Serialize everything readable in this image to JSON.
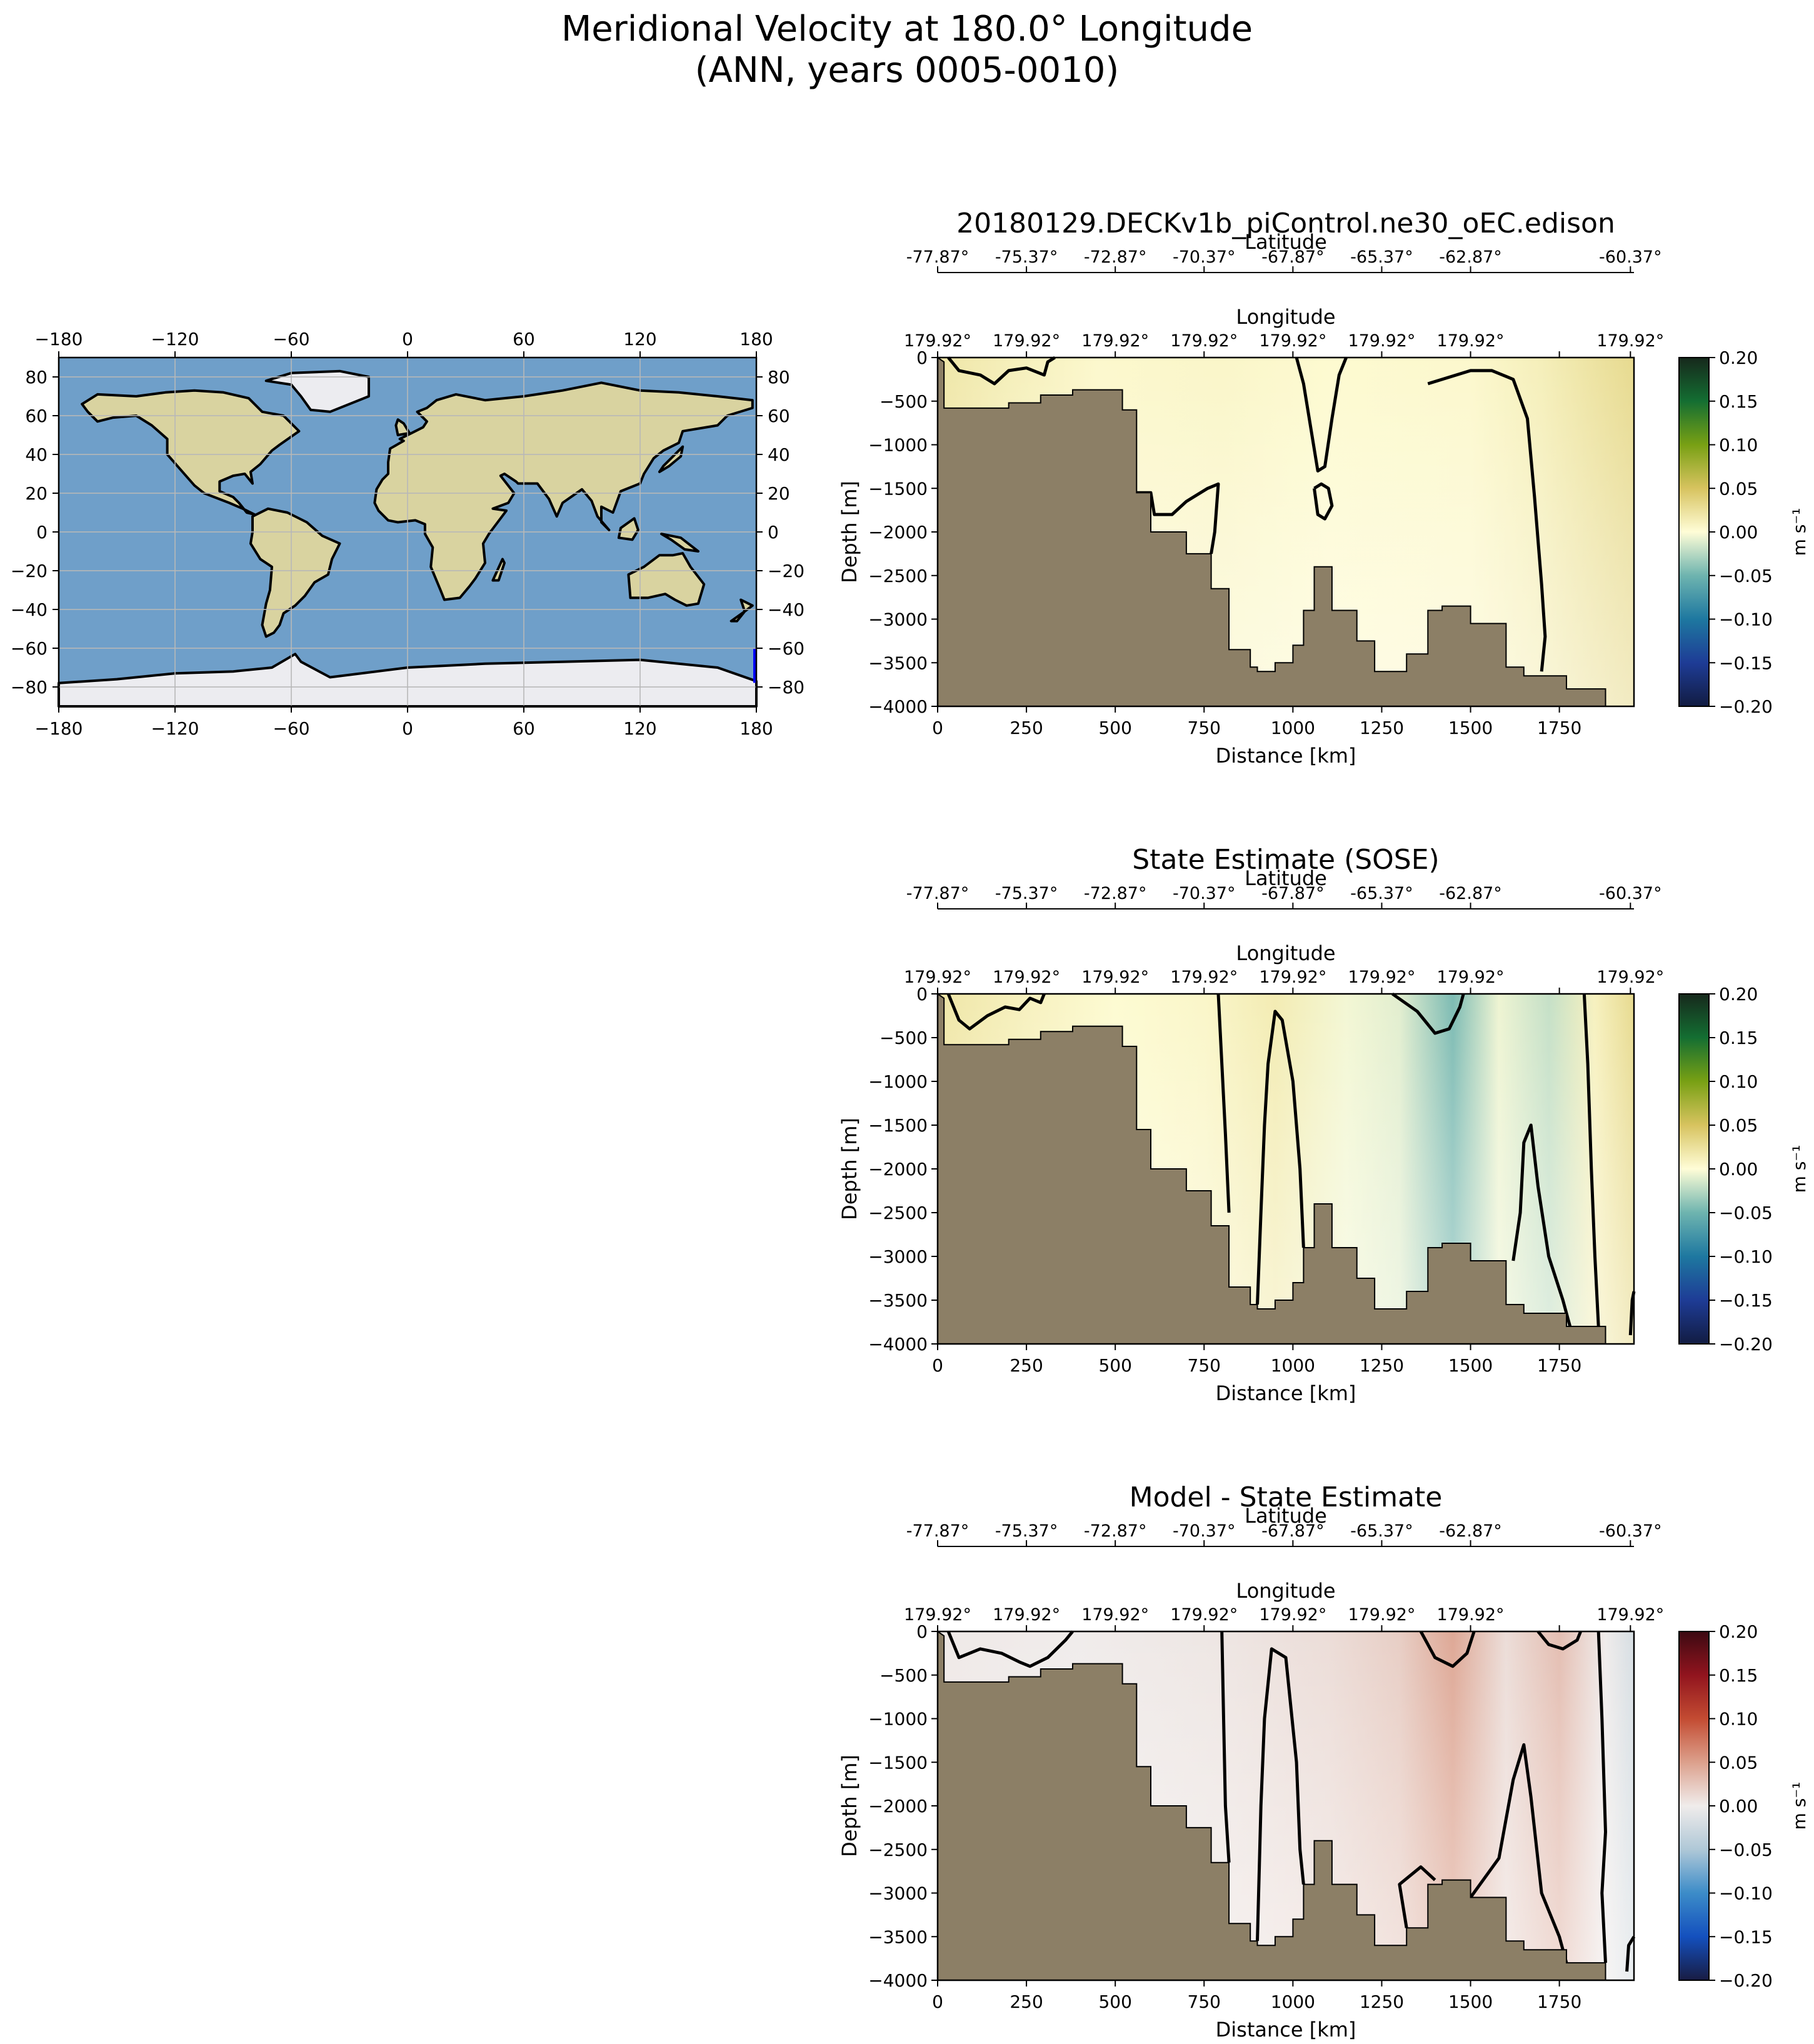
{
  "suptitle": {
    "line1": "Meridional Velocity at 180.0° Longitude",
    "line2": "(ANN, years 0005-0010)"
  },
  "map": {
    "lon_ticks": [
      -180,
      -120,
      -60,
      0,
      60,
      120,
      180
    ],
    "lat_ticks": [
      -80,
      -60,
      -40,
      -20,
      0,
      20,
      40,
      60,
      80
    ],
    "lon_range": [
      -180,
      180
    ],
    "lat_range": [
      -90,
      90
    ],
    "transect": {
      "lon": 180.0,
      "lat_start": -77.87,
      "lat_end": -60.37
    }
  },
  "panel_text": {
    "latitude_label": "Latitude",
    "longitude_label": "Longitude",
    "xlabel": "Distance [km]",
    "ylabel": "Depth [m]",
    "cbar_label": "m s⁻¹"
  },
  "chart_data": [
    {
      "type": "heatmap",
      "title": "20180129.DECKv1b_piControl.ne30_oEC.edison",
      "xlabel": "Distance [km]",
      "ylabel": "Depth [m]",
      "xlim": [
        0,
        1960
      ],
      "ylim": [
        -4000,
        0
      ],
      "x_ticks": [
        0,
        250,
        500,
        750,
        1000,
        1250,
        1500,
        1750
      ],
      "y_ticks": [
        0,
        -500,
        -1000,
        -1500,
        -2000,
        -2500,
        -3000,
        -3500,
        -4000
      ],
      "latitude_ticks": [
        "-77.87°",
        "-75.37°",
        "-72.87°",
        "-70.37°",
        "-67.87°",
        "-65.37°",
        "-62.87°",
        "-60.37°"
      ],
      "longitude_ticks": [
        "179.92°",
        "179.92°",
        "179.92°",
        "179.92°",
        "179.92°",
        "179.92°",
        "179.92°",
        "179.92°"
      ],
      "colormap": "delta",
      "colorbar": {
        "label": "m s⁻¹",
        "ticks": [
          "0.20",
          "0.15",
          "0.10",
          "0.05",
          "0.00",
          "-0.05",
          "-0.10",
          "-0.15",
          "-0.20"
        ],
        "range": [
          -0.2,
          0.2
        ]
      },
      "field_stops": [
        {
          "x": 0,
          "v": 0.02
        },
        {
          "x": 200,
          "v": 0.012
        },
        {
          "x": 450,
          "v": 0.004
        },
        {
          "x": 800,
          "v": 0.006
        },
        {
          "x": 1100,
          "v": 0.003
        },
        {
          "x": 1500,
          "v": 0.004
        },
        {
          "x": 1700,
          "v": 0.012
        },
        {
          "x": 1960,
          "v": 0.03
        }
      ]
    },
    {
      "type": "heatmap",
      "title": "State Estimate (SOSE)",
      "xlabel": "Distance [km]",
      "ylabel": "Depth [m]",
      "xlim": [
        0,
        1960
      ],
      "ylim": [
        -4000,
        0
      ],
      "x_ticks": [
        0,
        250,
        500,
        750,
        1000,
        1250,
        1500,
        1750
      ],
      "y_ticks": [
        0,
        -500,
        -1000,
        -1500,
        -2000,
        -2500,
        -3000,
        -3500,
        -4000
      ],
      "latitude_ticks": [
        "-77.87°",
        "-75.37°",
        "-72.87°",
        "-70.37°",
        "-67.87°",
        "-65.37°",
        "-62.87°",
        "-60.37°"
      ],
      "longitude_ticks": [
        "179.92°",
        "179.92°",
        "179.92°",
        "179.92°",
        "179.92°",
        "179.92°",
        "179.92°",
        "179.92°"
      ],
      "colormap": "delta",
      "colorbar": {
        "label": "m s⁻¹",
        "ticks": [
          "0.20",
          "0.15",
          "0.10",
          "0.05",
          "0.00",
          "-0.05",
          "-0.10",
          "-0.15",
          "-0.20"
        ],
        "range": [
          -0.2,
          0.2
        ]
      },
      "field_stops": [
        {
          "x": 0,
          "v": 0.02
        },
        {
          "x": 250,
          "v": 0.01
        },
        {
          "x": 500,
          "v": 0.002
        },
        {
          "x": 750,
          "v": 0.006
        },
        {
          "x": 950,
          "v": 0.015
        },
        {
          "x": 1150,
          "v": -0.004
        },
        {
          "x": 1300,
          "v": -0.01
        },
        {
          "x": 1450,
          "v": -0.045
        },
        {
          "x": 1580,
          "v": -0.006
        },
        {
          "x": 1720,
          "v": -0.02
        },
        {
          "x": 1850,
          "v": 0.01
        },
        {
          "x": 1960,
          "v": 0.03
        }
      ]
    },
    {
      "type": "heatmap",
      "title": "Model - State Estimate",
      "xlabel": "Distance [km]",
      "ylabel": "Depth [m]",
      "xlim": [
        0,
        1960
      ],
      "ylim": [
        -4000,
        0
      ],
      "x_ticks": [
        0,
        250,
        500,
        750,
        1000,
        1250,
        1500,
        1750
      ],
      "y_ticks": [
        0,
        -500,
        -1000,
        -1500,
        -2000,
        -2500,
        -3000,
        -3500,
        -4000
      ],
      "latitude_ticks": [
        "-77.87°",
        "-75.37°",
        "-72.87°",
        "-70.37°",
        "-67.87°",
        "-65.37°",
        "-62.87°",
        "-60.37°"
      ],
      "longitude_ticks": [
        "179.92°",
        "179.92°",
        "179.92°",
        "179.92°",
        "179.92°",
        "179.92°",
        "179.92°",
        "179.92°"
      ],
      "colormap": "balance",
      "colorbar": {
        "label": "m s⁻¹",
        "ticks": [
          "0.20",
          "0.15",
          "0.10",
          "0.05",
          "0.00",
          "-0.05",
          "-0.10",
          "-0.15",
          "-0.20"
        ],
        "range": [
          -0.2,
          0.2
        ]
      },
      "field_stops": [
        {
          "x": 0,
          "v": 0.002
        },
        {
          "x": 400,
          "v": 0.0
        },
        {
          "x": 800,
          "v": 0.004
        },
        {
          "x": 1100,
          "v": 0.01
        },
        {
          "x": 1300,
          "v": 0.02
        },
        {
          "x": 1450,
          "v": 0.045
        },
        {
          "x": 1600,
          "v": 0.01
        },
        {
          "x": 1750,
          "v": 0.03
        },
        {
          "x": 1880,
          "v": 0.0
        },
        {
          "x": 1960,
          "v": -0.02
        }
      ]
    }
  ]
}
